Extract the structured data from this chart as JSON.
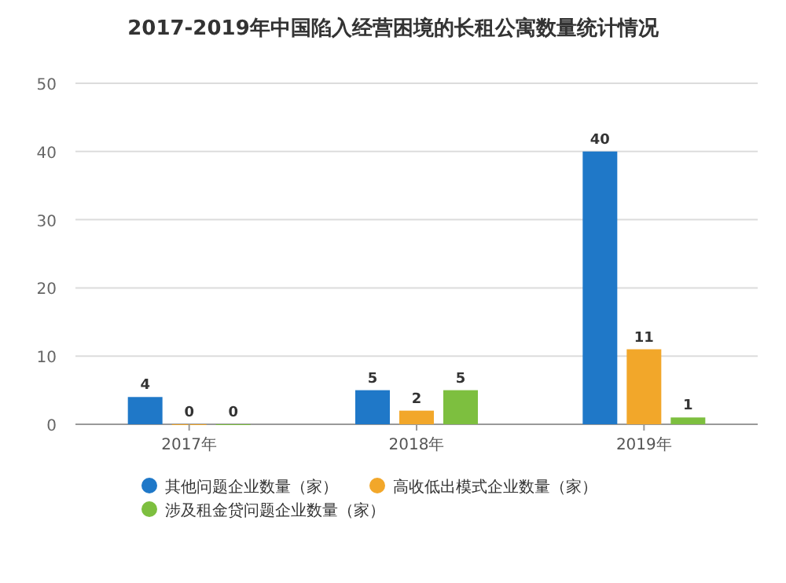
{
  "chart_data": {
    "type": "bar",
    "title": "2017-2019年中国陷入经营困境的长租公寓数量统计情况",
    "categories": [
      "2017年",
      "2018年",
      "2019年"
    ],
    "series": [
      {
        "name": "其他问题企业数量（家）",
        "color": "#1f78c8",
        "values": [
          4,
          5,
          40
        ]
      },
      {
        "name": "高收低出模式企业数量（家）",
        "color": "#f2a72a",
        "values": [
          0,
          2,
          11
        ]
      },
      {
        "name": "涉及租金贷问题企业数量（家）",
        "color": "#7dbf3f",
        "values": [
          0,
          5,
          1
        ]
      }
    ],
    "ylim": [
      0,
      50
    ],
    "yticks": [
      0,
      10,
      20,
      30,
      40,
      50
    ],
    "grid": "y",
    "data_labels": true,
    "legend": "bottom"
  }
}
